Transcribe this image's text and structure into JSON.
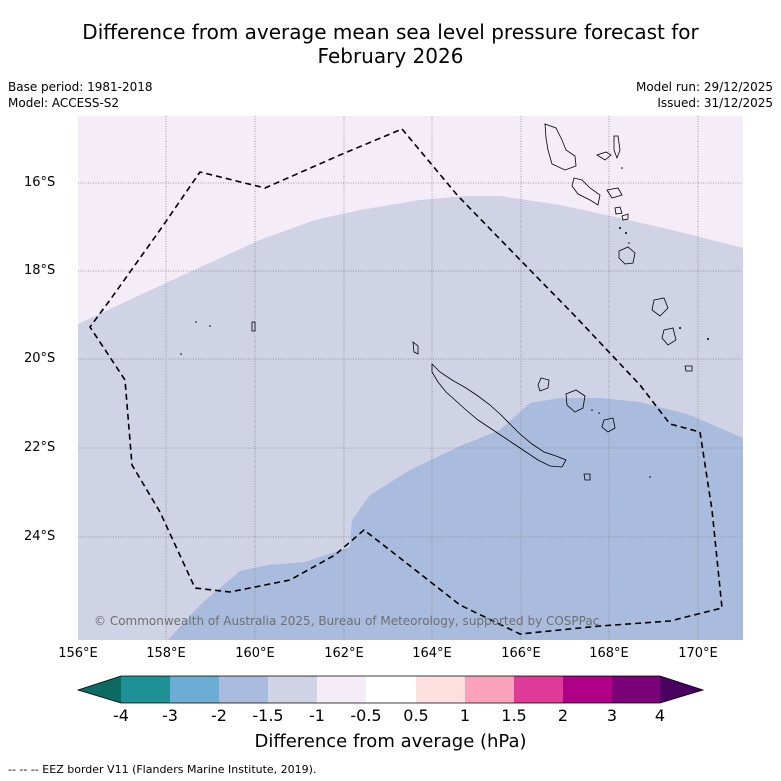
{
  "header": {
    "title_line1": "Difference from average mean sea level pressure forecast for",
    "title_line2": "February 2026",
    "base_period": "Base period: 1981-2018",
    "model": "Model: ACCESS-S2",
    "model_run": "Model run: 29/12/2025",
    "issued": "Issued: 31/12/2025"
  },
  "axes": {
    "lat_labels": [
      "16°S",
      "18°S",
      "20°S",
      "22°S",
      "24°S"
    ],
    "lon_labels": [
      "156°E",
      "158°E",
      "160°E",
      "162°E",
      "164°E",
      "166°E",
      "168°E",
      "170°E"
    ]
  },
  "colors": {
    "neg4": "#0b6b63",
    "neg3": "#1e9197",
    "neg2": "#6badd4",
    "neg15": "#a9bcdd",
    "neg1": "#d0d2e6",
    "neg05": "#f4ecf6",
    "zero": "#ffffff",
    "pos05": "#fde0df",
    "pos1": "#f9a1bd",
    "pos15": "#de3a98",
    "pos2": "#ae0187",
    "pos3": "#7b0178",
    "pos4": "#4a0060"
  },
  "colorbar": {
    "labels": [
      "-4",
      "-3",
      "-2",
      "-1.5",
      "-1",
      "-0.5",
      "0.5",
      "1",
      "1.5",
      "2",
      "3",
      "4"
    ],
    "title": "Difference from average (hPa)"
  },
  "copyright": "© Commonwealth of Australia 2025, Bureau of Meteorology, supported by COSPPac",
  "footnote": "--  --  -- EEZ border V11 (Flanders Marine Institute, 2019)."
}
